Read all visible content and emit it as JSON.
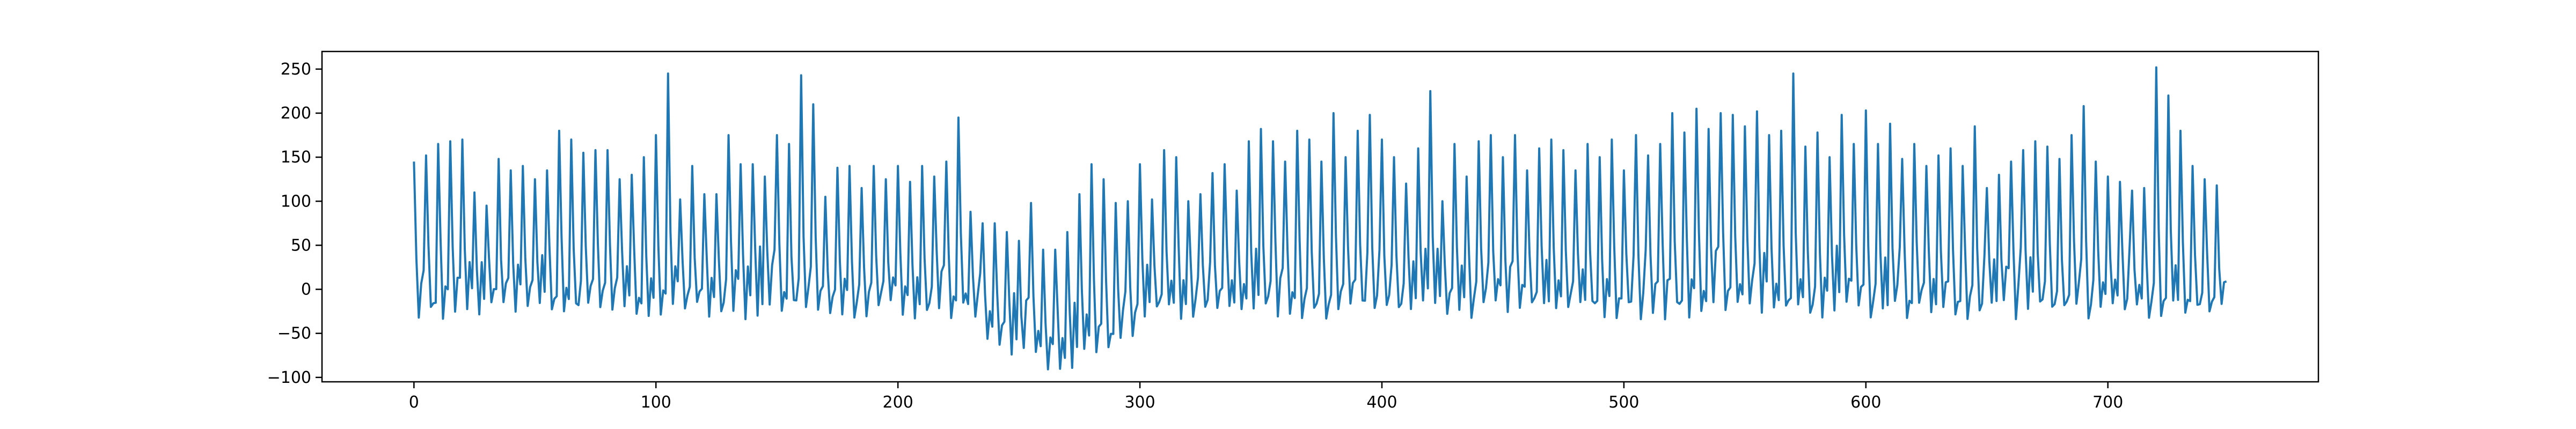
{
  "chart_data": {
    "type": "line",
    "title": "",
    "xlabel": "",
    "ylabel": "",
    "xlim": [
      -38,
      787
    ],
    "ylim": [
      -105,
      270
    ],
    "xticks": [
      0,
      100,
      200,
      300,
      400,
      500,
      600,
      700
    ],
    "yticks": [
      -100,
      -50,
      0,
      50,
      100,
      150,
      200,
      250
    ],
    "grid": false,
    "series": [
      {
        "name": "",
        "color": "#1f77b4",
        "n_points": 750,
        "seed": 7,
        "pattern": "oscillating series of sharp peaks with a dip between indices 230-300",
        "peaks": [
          [
            0,
            145
          ],
          [
            5,
            152
          ],
          [
            10,
            165
          ],
          [
            15,
            168
          ],
          [
            20,
            170
          ],
          [
            25,
            110
          ],
          [
            30,
            95
          ],
          [
            35,
            148
          ],
          [
            40,
            135
          ],
          [
            45,
            140
          ],
          [
            50,
            125
          ],
          [
            55,
            135
          ],
          [
            60,
            180
          ],
          [
            65,
            170
          ],
          [
            70,
            155
          ],
          [
            75,
            158
          ],
          [
            80,
            158
          ],
          [
            85,
            125
          ],
          [
            90,
            130
          ],
          [
            95,
            150
          ],
          [
            100,
            175
          ],
          [
            105,
            245
          ],
          [
            110,
            102
          ],
          [
            115,
            140
          ],
          [
            120,
            108
          ],
          [
            125,
            108
          ],
          [
            130,
            175
          ],
          [
            135,
            142
          ],
          [
            140,
            142
          ],
          [
            145,
            128
          ],
          [
            150,
            175
          ],
          [
            155,
            165
          ],
          [
            160,
            243
          ],
          [
            165,
            210
          ],
          [
            170,
            105
          ],
          [
            175,
            138
          ],
          [
            180,
            140
          ],
          [
            185,
            115
          ],
          [
            190,
            140
          ],
          [
            195,
            125
          ],
          [
            200,
            140
          ],
          [
            205,
            122
          ],
          [
            210,
            140
          ],
          [
            215,
            128
          ],
          [
            220,
            145
          ],
          [
            225,
            195
          ],
          [
            230,
            88
          ],
          [
            235,
            75
          ],
          [
            240,
            75
          ],
          [
            245,
            65
          ],
          [
            250,
            55
          ],
          [
            255,
            98
          ],
          [
            260,
            45
          ],
          [
            265,
            45
          ],
          [
            270,
            65
          ],
          [
            275,
            108
          ],
          [
            280,
            142
          ],
          [
            285,
            125
          ],
          [
            290,
            98
          ],
          [
            295,
            100
          ],
          [
            300,
            142
          ],
          [
            305,
            102
          ],
          [
            310,
            158
          ],
          [
            315,
            150
          ],
          [
            320,
            100
          ],
          [
            325,
            108
          ],
          [
            330,
            132
          ],
          [
            335,
            142
          ],
          [
            340,
            112
          ],
          [
            345,
            168
          ],
          [
            350,
            182
          ],
          [
            355,
            168
          ],
          [
            360,
            145
          ],
          [
            365,
            180
          ],
          [
            370,
            170
          ],
          [
            375,
            145
          ],
          [
            380,
            200
          ],
          [
            385,
            150
          ],
          [
            390,
            180
          ],
          [
            395,
            198
          ],
          [
            400,
            170
          ],
          [
            405,
            150
          ],
          [
            410,
            120
          ],
          [
            415,
            160
          ],
          [
            420,
            225
          ],
          [
            425,
            100
          ],
          [
            430,
            165
          ],
          [
            435,
            128
          ],
          [
            440,
            168
          ],
          [
            445,
            175
          ],
          [
            450,
            150
          ],
          [
            455,
            175
          ],
          [
            460,
            135
          ],
          [
            465,
            160
          ],
          [
            470,
            170
          ],
          [
            475,
            158
          ],
          [
            480,
            135
          ],
          [
            485,
            165
          ],
          [
            490,
            150
          ],
          [
            495,
            170
          ],
          [
            500,
            135
          ],
          [
            505,
            175
          ],
          [
            510,
            152
          ],
          [
            515,
            165
          ],
          [
            520,
            200
          ],
          [
            525,
            178
          ],
          [
            530,
            205
          ],
          [
            535,
            182
          ],
          [
            540,
            200
          ],
          [
            545,
            198
          ],
          [
            550,
            185
          ],
          [
            555,
            202
          ],
          [
            560,
            175
          ],
          [
            565,
            180
          ],
          [
            570,
            245
          ],
          [
            575,
            162
          ],
          [
            580,
            178
          ],
          [
            585,
            150
          ],
          [
            590,
            198
          ],
          [
            595,
            165
          ],
          [
            600,
            203
          ],
          [
            605,
            165
          ],
          [
            610,
            188
          ],
          [
            615,
            148
          ],
          [
            620,
            165
          ],
          [
            625,
            140
          ],
          [
            630,
            152
          ],
          [
            635,
            160
          ],
          [
            640,
            140
          ],
          [
            645,
            185
          ],
          [
            650,
            115
          ],
          [
            655,
            130
          ],
          [
            660,
            145
          ],
          [
            665,
            158
          ],
          [
            670,
            168
          ],
          [
            675,
            162
          ],
          [
            680,
            148
          ],
          [
            685,
            175
          ],
          [
            690,
            208
          ],
          [
            695,
            145
          ],
          [
            700,
            128
          ],
          [
            705,
            122
          ],
          [
            710,
            112
          ],
          [
            715,
            115
          ],
          [
            720,
            252
          ],
          [
            725,
            220
          ],
          [
            730,
            180
          ],
          [
            735,
            140
          ],
          [
            740,
            125
          ],
          [
            745,
            118
          ]
        ]
      }
    ]
  }
}
